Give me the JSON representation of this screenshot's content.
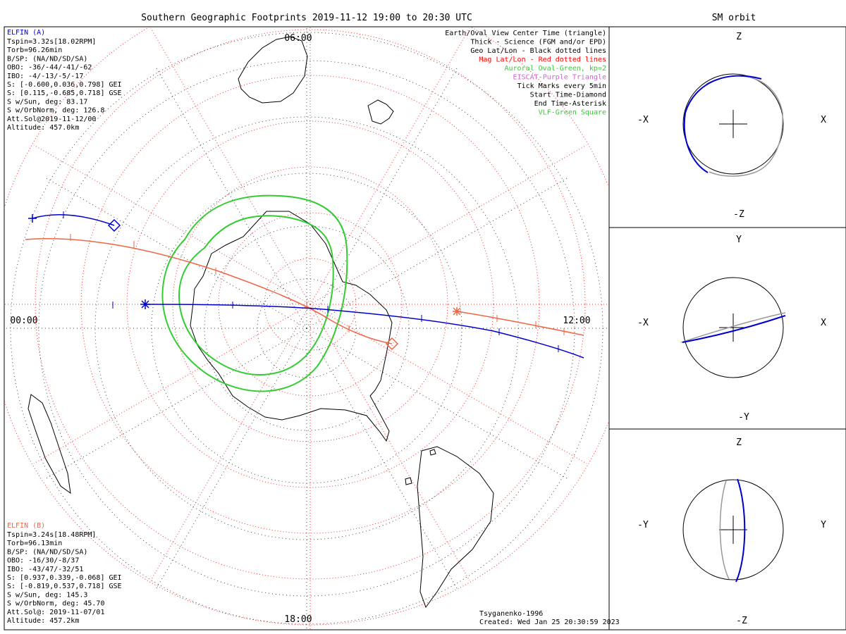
{
  "chart_data": [
    {
      "type": "map",
      "title": "Southern Geographic Footprints 2019-11-12 19:00 to 20:30 UTC",
      "time_labels": {
        "top": "06:00",
        "left": "00:00",
        "right": "12:00",
        "bottom": "18:00"
      },
      "legend": [
        {
          "text": "Earth/Oval View Center Time (triangle)",
          "color": "#000000"
        },
        {
          "text": "Thick - Science (FGM and/or EPD)",
          "color": "#000000"
        },
        {
          "text": "Geo Lat/Lon - Black dotted lines",
          "color": "#000000"
        },
        {
          "text": "Mag Lat/Lon - Red dotted lines",
          "color": "#ff0000"
        },
        {
          "text": "Auroral Oval-Green, kp=2",
          "color": "#33cc33"
        },
        {
          "text": "EISCAT-Purple Triangle",
          "color": "#cc66cc"
        },
        {
          "text": "Tick Marks every 5min",
          "color": "#000000"
        },
        {
          "text": "Start Time-Diamond",
          "color": "#000000"
        },
        {
          "text": "End Time-Asterisk",
          "color": "#000000"
        },
        {
          "text": "VLF-Green Square",
          "color": "#33cc33"
        }
      ],
      "probe_a": {
        "name": "ELFIN (A)",
        "color": "#0000cc",
        "lines": [
          "Tspin=3.32s[18.02RPM]",
          "Torb=96.26min",
          "B/SP: (NA/ND/SD/SA)",
          "OBO: -36/-44/-41/-62",
          "IBO: -4/-13/-5/-17",
          "S: [-0.600,0.036,0.798] GEI",
          "S: [0.115,-0.685,0.718] GSE",
          "S w/Sun, deg: 83.17",
          "S w/OrbNorm, deg: 126.8",
          "Att.Sol@2019-11-12/00",
          "Altitude: 457.0km"
        ]
      },
      "probe_b": {
        "name": "ELFIN (B)",
        "color": "#ee6644",
        "lines": [
          "Tspin=3.24s[18.48RPM]",
          "Torb=96.13min",
          "B/SP: (NA/ND/SD/SA)",
          "OBO: -16/30/-8/37",
          "IBO: -43/47/-32/51",
          "S: [0.937,0.339,-0.068] GEI",
          "S: [-0.819,0.537,0.718] GSE",
          "S w/Sun, deg: 145.3",
          "S w/OrbNorm, deg: 45.70",
          "Att.Sol@: 2019-11-07/01",
          "Altitude: 457.2km"
        ]
      },
      "footer": {
        "model": "Tsyganenko-1996",
        "created": "Created: Wed Jan 25 20:30:59 2023"
      }
    },
    {
      "type": "orbit",
      "title": "SM orbit",
      "panels": [
        {
          "top": "Z",
          "bottom": "-Z",
          "left": "-X",
          "right": "X"
        },
        {
          "top": "Y",
          "bottom": "-Y",
          "left": "-X",
          "right": "X"
        },
        {
          "top": "Z",
          "bottom": "-Z",
          "left": "-Y",
          "right": "Y"
        }
      ]
    }
  ]
}
